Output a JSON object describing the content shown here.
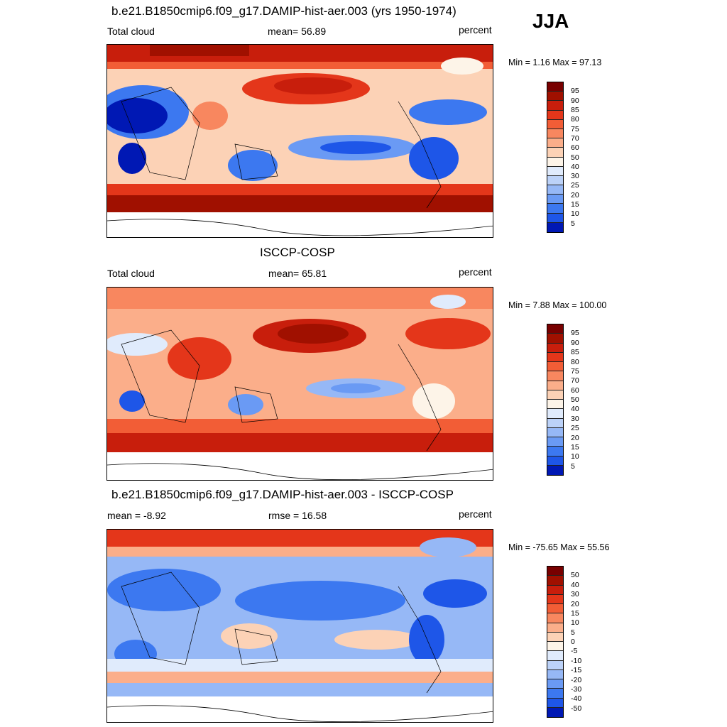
{
  "season": "JJA",
  "palette_pos": [
    "#08007a",
    "#0018b4",
    "#0a36d2",
    "#1e56e8",
    "#3c78f0",
    "#6a9af4",
    "#96b8f6",
    "#bcd2f8",
    "#e0ebfc",
    "#fdf4e8",
    "#fcd2b6",
    "#fbae8a",
    "#f8875f",
    "#f25d36",
    "#e4361a",
    "#c81e0c",
    "#a01000",
    "#780000"
  ],
  "panels": [
    {
      "id": "model",
      "title": "b.e21.B1850cmip6.f09_g17.DAMIP-hist-aer.003 (yrs 1950-1974)",
      "left_label": "Total cloud",
      "center_label": "mean=  56.89",
      "units": "percent",
      "minmax": "Min =   1.16 Max =  97.13",
      "colorbar": {
        "labels": [
          "95",
          "90",
          "85",
          "80",
          "75",
          "70",
          "60",
          "50",
          "40",
          "30",
          "25",
          "20",
          "15",
          "10",
          "5"
        ],
        "colors": [
          "#780000",
          "#a01000",
          "#c81e0c",
          "#e4361a",
          "#f25d36",
          "#f8875f",
          "#fbae8a",
          "#fcd2b6",
          "#fdf4e8",
          "#e0ebfc",
          "#bcd2f8",
          "#96b8f6",
          "#6a9af4",
          "#3c78f0",
          "#1e56e8",
          "#0018b4"
        ]
      }
    },
    {
      "id": "obs",
      "title": "ISCCP-COSP",
      "left_label": "Total cloud",
      "center_label": "mean=  65.81",
      "units": "percent",
      "minmax": "Min =   7.88 Max = 100.00",
      "colorbar": {
        "labels": [
          "95",
          "90",
          "85",
          "80",
          "75",
          "70",
          "60",
          "50",
          "40",
          "30",
          "25",
          "20",
          "15",
          "10",
          "5"
        ],
        "colors": [
          "#780000",
          "#a01000",
          "#c81e0c",
          "#e4361a",
          "#f25d36",
          "#f8875f",
          "#fbae8a",
          "#fcd2b6",
          "#fdf4e8",
          "#e0ebfc",
          "#bcd2f8",
          "#96b8f6",
          "#6a9af4",
          "#3c78f0",
          "#1e56e8",
          "#0018b4"
        ]
      }
    },
    {
      "id": "diff",
      "title": "b.e21.B1850cmip6.f09_g17.DAMIP-hist-aer.003 - ISCCP-COSP",
      "left_label": "mean =  -8.92",
      "center_label": "rmse =  16.58",
      "units": "percent",
      "minmax": "Min = -75.65 Max =  55.56",
      "colorbar": {
        "labels": [
          "50",
          "40",
          "30",
          "20",
          "15",
          "10",
          "5",
          "0",
          "-5",
          "-10",
          "-15",
          "-20",
          "-30",
          "-40",
          "-50"
        ],
        "colors": [
          "#780000",
          "#a01000",
          "#c81e0c",
          "#e4361a",
          "#f25d36",
          "#f8875f",
          "#fbae8a",
          "#fcd2b6",
          "#fdf4e8",
          "#e0ebfc",
          "#bcd2f8",
          "#96b8f6",
          "#6a9af4",
          "#3c78f0",
          "#1e56e8",
          "#0018b4"
        ]
      }
    }
  ]
}
